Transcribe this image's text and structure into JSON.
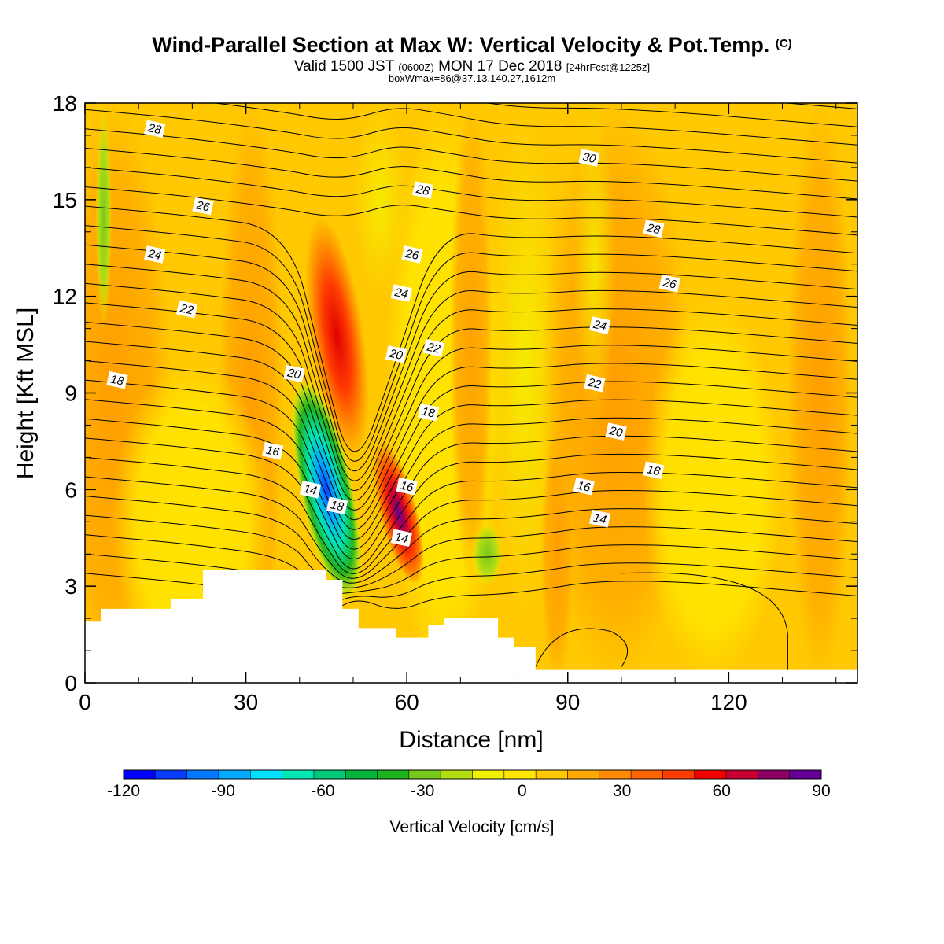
{
  "header": {
    "title": "Wind-Parallel Section at Max W: Vertical Velocity & Pot.Temp.",
    "copyright_mark": "(C)",
    "valid_prefix": "Valid 1500 JST",
    "valid_utc": "(0600Z)",
    "valid_date": "MON 17 Dec 2018",
    "forecast_tag": "[24hrFcst@1225z]",
    "box_info": "boxWmax=86@37.13,140.27,1612m"
  },
  "chart_data": {
    "type": "heatmap",
    "xlabel": "Distance [nm]",
    "ylabel": "Height [Kft MSL]",
    "xlim": [
      0,
      144
    ],
    "ylim": [
      0,
      18
    ],
    "x_ticks": [
      "0",
      "30",
      "60",
      "90",
      "120"
    ],
    "y_ticks": [
      "0",
      "3",
      "6",
      "9",
      "12",
      "15",
      "18"
    ],
    "colorbar": {
      "label": "Vertical Velocity [cm/s]",
      "tick_labels": [
        "-120",
        "-90",
        "-60",
        "-30",
        "0",
        "30",
        "60",
        "90"
      ],
      "levels": [
        -120,
        -110,
        -100,
        -90,
        -80,
        -70,
        -60,
        -50,
        -40,
        -30,
        -20,
        -10,
        0,
        10,
        20,
        30,
        40,
        50,
        60,
        70,
        80,
        90
      ],
      "colors": [
        "#0000ff",
        "#0a3cff",
        "#0078ff",
        "#00aaff",
        "#00e0ff",
        "#00e6b4",
        "#00c878",
        "#00b43c",
        "#1eb41e",
        "#78c81e",
        "#b4dc14",
        "#f0f000",
        "#ffe600",
        "#ffc800",
        "#ffaa00",
        "#ff8c00",
        "#ff6400",
        "#ff3c00",
        "#f00000",
        "#c80032",
        "#8c0064",
        "#640096"
      ]
    },
    "vertical_velocity_features": [
      {
        "kind": "updraft",
        "x": [
          42,
          52
        ],
        "height": [
          7,
          14.5
        ],
        "max_cm_s": 60
      },
      {
        "kind": "updraft",
        "x": [
          55,
          62
        ],
        "height": [
          3,
          7.5
        ],
        "max_cm_s": 86
      },
      {
        "kind": "downdraft",
        "x": [
          40,
          50
        ],
        "height": [
          2.5,
          9.5
        ],
        "min_cm_s": -110
      },
      {
        "kind": "downdraft",
        "x": [
          72,
          78
        ],
        "height": [
          3,
          5
        ],
        "min_cm_s": -30
      },
      {
        "kind": "downdraft",
        "x": [
          2,
          5
        ],
        "height": [
          11,
          18
        ],
        "min_cm_s": -30
      }
    ],
    "potential_temperature_contours": [
      {
        "label": "28",
        "x": 13,
        "y": 17.2
      },
      {
        "label": "26",
        "x": 22,
        "y": 14.8
      },
      {
        "label": "24",
        "x": 13,
        "y": 13.3
      },
      {
        "label": "22",
        "x": 19,
        "y": 11.6
      },
      {
        "label": "18",
        "x": 6,
        "y": 9.4
      },
      {
        "label": "20",
        "x": 39,
        "y": 9.6
      },
      {
        "label": "16",
        "x": 35,
        "y": 7.2
      },
      {
        "label": "14",
        "x": 42,
        "y": 6
      },
      {
        "label": "18",
        "x": 47,
        "y": 5.5
      },
      {
        "label": "30",
        "x": 94,
        "y": 16.3
      },
      {
        "label": "28",
        "x": 63,
        "y": 15.3
      },
      {
        "label": "28",
        "x": 106,
        "y": 14.1
      },
      {
        "label": "26",
        "x": 61,
        "y": 13.3
      },
      {
        "label": "26",
        "x": 109,
        "y": 12.4
      },
      {
        "label": "24",
        "x": 59,
        "y": 12.1
      },
      {
        "label": "24",
        "x": 96,
        "y": 11.1
      },
      {
        "label": "20",
        "x": 58,
        "y": 10.2
      },
      {
        "label": "22",
        "x": 65,
        "y": 10.4
      },
      {
        "label": "22",
        "x": 95,
        "y": 9.3
      },
      {
        "label": "18",
        "x": 64,
        "y": 8.4
      },
      {
        "label": "20",
        "x": 99,
        "y": 7.8
      },
      {
        "label": "18",
        "x": 106,
        "y": 6.6
      },
      {
        "label": "16",
        "x": 60,
        "y": 6.1
      },
      {
        "label": "16",
        "x": 93,
        "y": 6.1
      },
      {
        "label": "14",
        "x": 59,
        "y": 4.5
      },
      {
        "label": "14",
        "x": 96,
        "y": 5.1
      }
    ],
    "terrain": {
      "x": [
        0,
        3,
        3,
        16,
        16,
        22,
        22,
        39,
        39,
        45,
        45,
        48,
        48,
        51,
        51,
        58,
        58,
        64,
        64,
        67,
        67,
        77,
        77,
        80,
        80,
        84,
        84,
        144
      ],
      "height": [
        1.9,
        1.9,
        2.3,
        2.3,
        2.6,
        2.6,
        3.5,
        3.5,
        3.5,
        3.5,
        3.2,
        3.2,
        2.3,
        2.3,
        1.7,
        1.7,
        1.4,
        1.4,
        1.8,
        1.8,
        2.0,
        2.0,
        1.4,
        1.4,
        1.1,
        1.1,
        0.4,
        0.4
      ]
    }
  }
}
